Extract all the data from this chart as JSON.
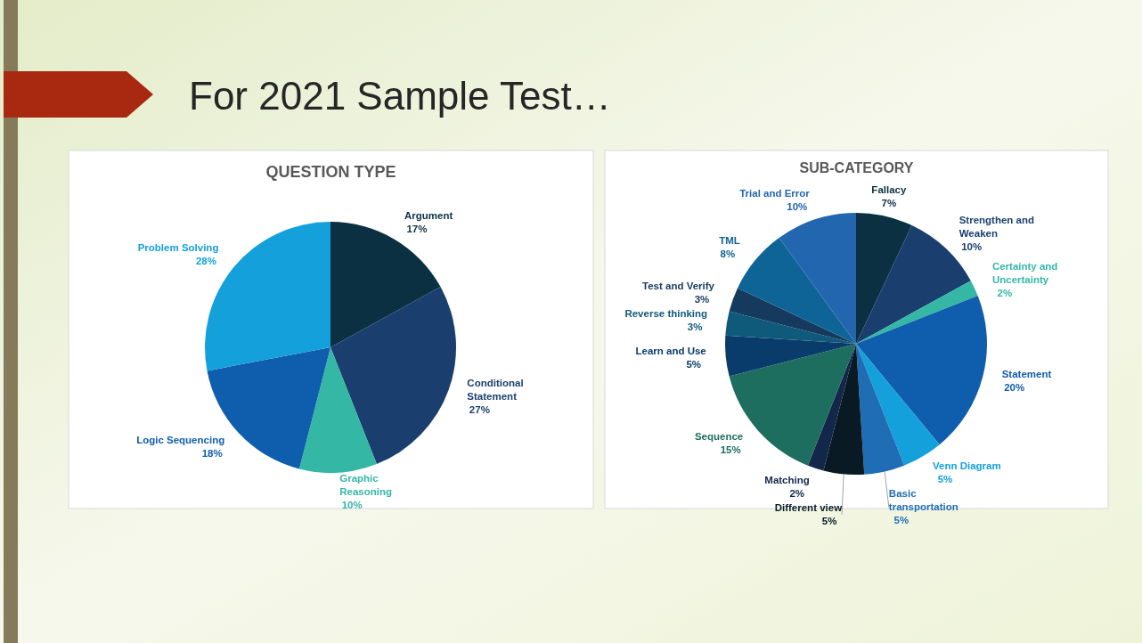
{
  "chart_data": [
    {
      "type": "pie",
      "title": "QUESTION TYPE",
      "annotations": [
        "For 2021 Sample Test…"
      ],
      "categories": [
        "Argument",
        "Conditional Statement",
        "Graphic Reasoning",
        "Logic Sequencing",
        "Problem Solving"
      ],
      "values": [
        17,
        27,
        10,
        18,
        28
      ],
      "value_labels": [
        "17%",
        "27%",
        "10%",
        "18%",
        "28%"
      ],
      "colors": [
        "#0b3042",
        "#1a3f6f",
        "#35b7a6",
        "#0f5ead",
        "#14a0db"
      ]
    },
    {
      "type": "pie",
      "title": "SUB-CATEGORY",
      "categories": [
        "Fallacy",
        "Strengthen and Weaken",
        "Certainty and Uncertainty",
        "Statement",
        "Venn Diagram",
        "Basic transportation",
        "Different view",
        "Matching",
        "Sequence",
        "Learn and Use",
        "Reverse thinking",
        "Test and Verify",
        "TML",
        "Trial and Error"
      ],
      "values": [
        7,
        10,
        2,
        20,
        5,
        5,
        5,
        2,
        15,
        5,
        3,
        3,
        8,
        10
      ],
      "value_labels": [
        "7%",
        "10%",
        "2%",
        "20%",
        "5%",
        "5%",
        "5%",
        "2%",
        "15%",
        "5%",
        "3%",
        "3%",
        "8%",
        "10%"
      ],
      "colors": [
        "#0b3042",
        "#1a3f6f",
        "#35b7a6",
        "#0f5ead",
        "#14a0db",
        "#1f6eb5",
        "#091a24",
        "#13274a",
        "#1e6e60",
        "#093c6a",
        "#0f5a7a",
        "#163a5e",
        "#0e6496",
        "#2266b0"
      ]
    }
  ]
}
